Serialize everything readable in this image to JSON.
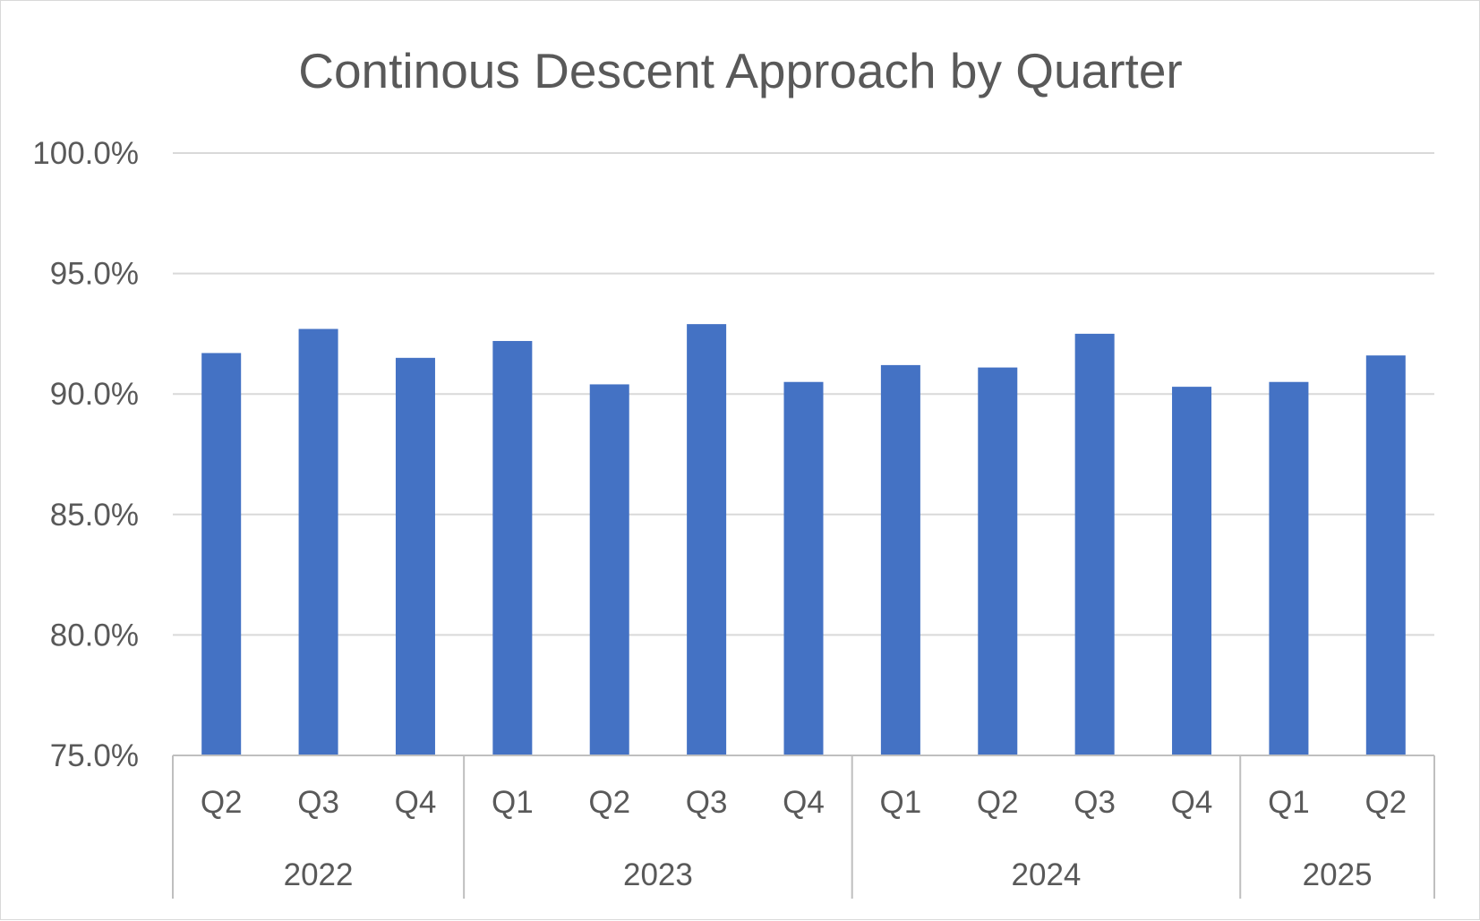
{
  "chart_data": {
    "type": "bar",
    "title": "Continous Descent Approach by Quarter",
    "xlabel": "",
    "ylabel": "",
    "ylim": [
      75,
      100
    ],
    "yticks": [
      75,
      80,
      85,
      90,
      95,
      100
    ],
    "ytick_labels": [
      "75.0%",
      "80.0%",
      "85.0%",
      "90.0%",
      "95.0%",
      "100.0%"
    ],
    "grid": true,
    "legend": "none",
    "color": "#4472C4",
    "categories": [
      {
        "quarter": "Q2",
        "year": "2022"
      },
      {
        "quarter": "Q3",
        "year": "2022"
      },
      {
        "quarter": "Q4",
        "year": "2022"
      },
      {
        "quarter": "Q1",
        "year": "2023"
      },
      {
        "quarter": "Q2",
        "year": "2023"
      },
      {
        "quarter": "Q3",
        "year": "2023"
      },
      {
        "quarter": "Q4",
        "year": "2023"
      },
      {
        "quarter": "Q1",
        "year": "2024"
      },
      {
        "quarter": "Q2",
        "year": "2024"
      },
      {
        "quarter": "Q3",
        "year": "2024"
      },
      {
        "quarter": "Q4",
        "year": "2024"
      },
      {
        "quarter": "Q1",
        "year": "2025"
      },
      {
        "quarter": "Q2",
        "year": "2025"
      }
    ],
    "years": [
      "2022",
      "2023",
      "2024",
      "2025"
    ],
    "values": [
      91.7,
      92.7,
      91.5,
      92.2,
      90.4,
      92.9,
      90.5,
      91.2,
      91.1,
      92.5,
      90.3,
      90.5,
      91.6
    ]
  }
}
